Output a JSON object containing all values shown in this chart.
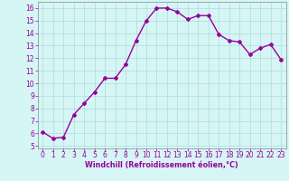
{
  "x": [
    0,
    1,
    2,
    3,
    4,
    5,
    6,
    7,
    8,
    9,
    10,
    11,
    12,
    13,
    14,
    15,
    16,
    17,
    18,
    19,
    20,
    21,
    22,
    23
  ],
  "y": [
    6.1,
    5.6,
    5.7,
    7.5,
    8.4,
    9.3,
    10.4,
    10.4,
    11.5,
    13.4,
    15.0,
    16.0,
    16.0,
    15.7,
    15.1,
    15.4,
    15.4,
    13.9,
    13.4,
    13.3,
    12.3,
    12.8,
    13.1,
    11.9
  ],
  "line_color": "#990099",
  "marker": "D",
  "marker_size": 2.0,
  "line_width": 1.0,
  "background_color": "#d6f5f5",
  "grid_color": "#aadddd",
  "xlabel": "Windchill (Refroidissement éolien,°C)",
  "xlabel_color": "#990099",
  "tick_color": "#990099",
  "ylim": [
    4.8,
    16.5
  ],
  "xlim": [
    -0.5,
    23.5
  ],
  "yticks": [
    5,
    6,
    7,
    8,
    9,
    10,
    11,
    12,
    13,
    14,
    15,
    16
  ],
  "xticks": [
    0,
    1,
    2,
    3,
    4,
    5,
    6,
    7,
    8,
    9,
    10,
    11,
    12,
    13,
    14,
    15,
    16,
    17,
    18,
    19,
    20,
    21,
    22,
    23
  ],
  "tick_fontsize": 5.5,
  "xlabel_fontsize": 5.8
}
